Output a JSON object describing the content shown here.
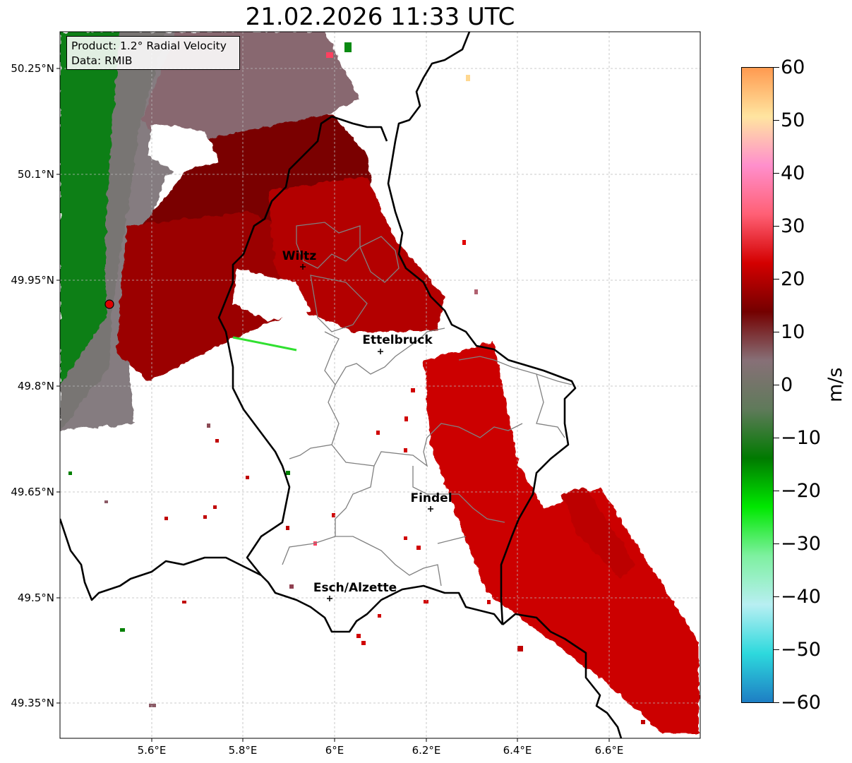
{
  "title": "21.02.2026 11:33 UTC",
  "info": {
    "product": "Product: 1.2° Radial Velocity",
    "data": "Data: RMIB"
  },
  "lat_labels": [
    "50.25°N",
    "50.1°N",
    "49.95°N",
    "49.8°N",
    "49.65°N",
    "49.5°N",
    "49.35°N"
  ],
  "lon_labels": [
    "5.6°E",
    "5.8°E",
    "6°E",
    "6.2°E",
    "6.4°E",
    "6.6°E"
  ],
  "cities": [
    {
      "name": "Wiltz",
      "lon": 5.93,
      "lat": 49.968
    },
    {
      "name": "Ettelbruck",
      "lon": 6.104,
      "lat": 49.848
    },
    {
      "name": "Findel",
      "lon": 6.21,
      "lat": 49.626
    },
    {
      "name": "Esch/Alzette",
      "lon": 5.99,
      "lat": 49.499
    }
  ],
  "radar_site": {
    "lon": 5.505,
    "lat": 49.915
  },
  "colorbar": {
    "unit": "m/s",
    "ticks": [
      "60",
      "50",
      "40",
      "30",
      "20",
      "10",
      "0",
      "−10",
      "−20",
      "−30",
      "−40",
      "−50",
      "−60"
    ],
    "range": [
      -60,
      60
    ],
    "stops": [
      "#1e7ec4",
      "#2dd9dd",
      "#b8eff2",
      "#7ef0a0",
      "#00e800",
      "#007a00",
      "#5f7a5a",
      "#877077",
      "#740000",
      "#d40000",
      "#ff6075",
      "#ff8fcc",
      "#ffe5a0",
      "#ff9a50"
    ]
  }
}
